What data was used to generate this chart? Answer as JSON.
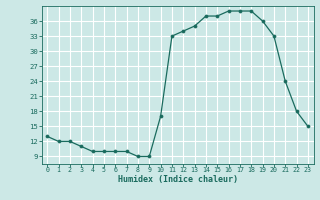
{
  "x": [
    0,
    1,
    2,
    3,
    4,
    5,
    6,
    7,
    8,
    9,
    10,
    11,
    12,
    13,
    14,
    15,
    16,
    17,
    18,
    19,
    20,
    21,
    22,
    23
  ],
  "y": [
    13,
    12,
    12,
    11,
    10,
    10,
    10,
    10,
    9,
    9,
    17,
    33,
    34,
    35,
    37,
    37,
    38,
    38,
    38,
    36,
    33,
    24,
    18,
    15
  ],
  "line_color": "#1a6b5e",
  "marker_color": "#1a6b5e",
  "bg_color": "#cce8e6",
  "grid_color": "#ffffff",
  "xlabel": "Humidex (Indice chaleur)",
  "xlim": [
    -0.5,
    23.5
  ],
  "ylim": [
    7.5,
    39
  ],
  "yticks": [
    9,
    12,
    15,
    18,
    21,
    24,
    27,
    30,
    33,
    36
  ],
  "xticks": [
    0,
    1,
    2,
    3,
    4,
    5,
    6,
    7,
    8,
    9,
    10,
    11,
    12,
    13,
    14,
    15,
    16,
    17,
    18,
    19,
    20,
    21,
    22,
    23
  ],
  "font_color": "#1a6b5e"
}
